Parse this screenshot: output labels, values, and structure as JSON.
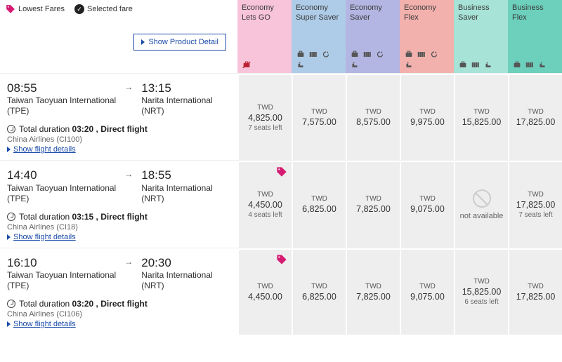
{
  "legend": {
    "lowest_fares_label": "Lowest Fares",
    "selected_fare_label": "Selected fare",
    "tag_color": "#d61c72"
  },
  "show_product_detail_label": "Show Product Detail",
  "fare_classes": [
    {
      "title_line1": "Economy",
      "title_line2": "Lets GO",
      "bg": "#f8c4d9",
      "icons": [
        "no-bag"
      ]
    },
    {
      "title_line1": "Economy",
      "title_line2": "Super Saver",
      "bg": "#aecce8",
      "icons": [
        "bag",
        "seat",
        "refresh",
        "pax"
      ]
    },
    {
      "title_line1": "Economy",
      "title_line2": "Saver",
      "bg": "#b3b6e2",
      "icons": [
        "bag",
        "seat",
        "refresh",
        "pax"
      ]
    },
    {
      "title_line1": "Economy",
      "title_line2": "Flex",
      "bg": "#f2b1ad",
      "icons": [
        "bag",
        "seat",
        "refresh",
        "pax"
      ]
    },
    {
      "title_line1": "Business",
      "title_line2": "Saver",
      "bg": "#a7e3d6",
      "icons": [
        "bag",
        "seat",
        "pax"
      ]
    },
    {
      "title_line1": "Business",
      "title_line2": "Flex",
      "bg": "#6cd0bc",
      "icons": [
        "bag",
        "seat",
        "pax"
      ]
    }
  ],
  "currency": "TWD",
  "flights": [
    {
      "dep_time": "08:55",
      "dep_name": "Taiwan Taoyuan International",
      "dep_code": "(TPE)",
      "arr_time": "13:15",
      "arr_name": "Narita International",
      "arr_code": "(NRT)",
      "duration_prefix": "Total duration ",
      "duration": "03:20 ",
      "flight_type": ", Direct flight",
      "airline": "China Airlines (CI100)",
      "show_details_label": "Show flight details",
      "fares": [
        {
          "price": "4,825.00",
          "seats": "7 seats left",
          "lowest": false
        },
        {
          "price": "7,575.00"
        },
        {
          "price": "8,575.00"
        },
        {
          "price": "9,975.00"
        },
        {
          "price": "15,825.00"
        },
        {
          "price": "17,825.00"
        }
      ]
    },
    {
      "dep_time": "14:40",
      "dep_name": "Taiwan Taoyuan International",
      "dep_code": "(TPE)",
      "arr_time": "18:55",
      "arr_name": "Narita International",
      "arr_code": "(NRT)",
      "duration_prefix": "Total duration ",
      "duration": "03:15 ",
      "flight_type": ", Direct flight",
      "airline": "China Airlines (CI18)",
      "show_details_label": "Show flight details",
      "fares": [
        {
          "price": "4,450.00",
          "seats": "4 seats left",
          "lowest": true
        },
        {
          "price": "6,825.00"
        },
        {
          "price": "7,825.00"
        },
        {
          "price": "9,075.00"
        },
        {
          "na": true,
          "na_text": "not available"
        },
        {
          "price": "17,825.00",
          "seats": "7 seats left"
        }
      ]
    },
    {
      "dep_time": "16:10",
      "dep_name": "Taiwan Taoyuan International",
      "dep_code": "(TPE)",
      "arr_time": "20:30",
      "arr_name": "Narita International",
      "arr_code": "(NRT)",
      "duration_prefix": "Total duration ",
      "duration": "03:20 ",
      "flight_type": ", Direct flight",
      "airline": "China Airlines (CI106)",
      "show_details_label": "Show flight details",
      "fares": [
        {
          "price": "4,450.00",
          "lowest": true
        },
        {
          "price": "6,825.00"
        },
        {
          "price": "7,825.00"
        },
        {
          "price": "9,075.00"
        },
        {
          "price": "15,825.00",
          "seats": "6 seats left"
        },
        {
          "price": "17,825.00"
        }
      ]
    }
  ]
}
